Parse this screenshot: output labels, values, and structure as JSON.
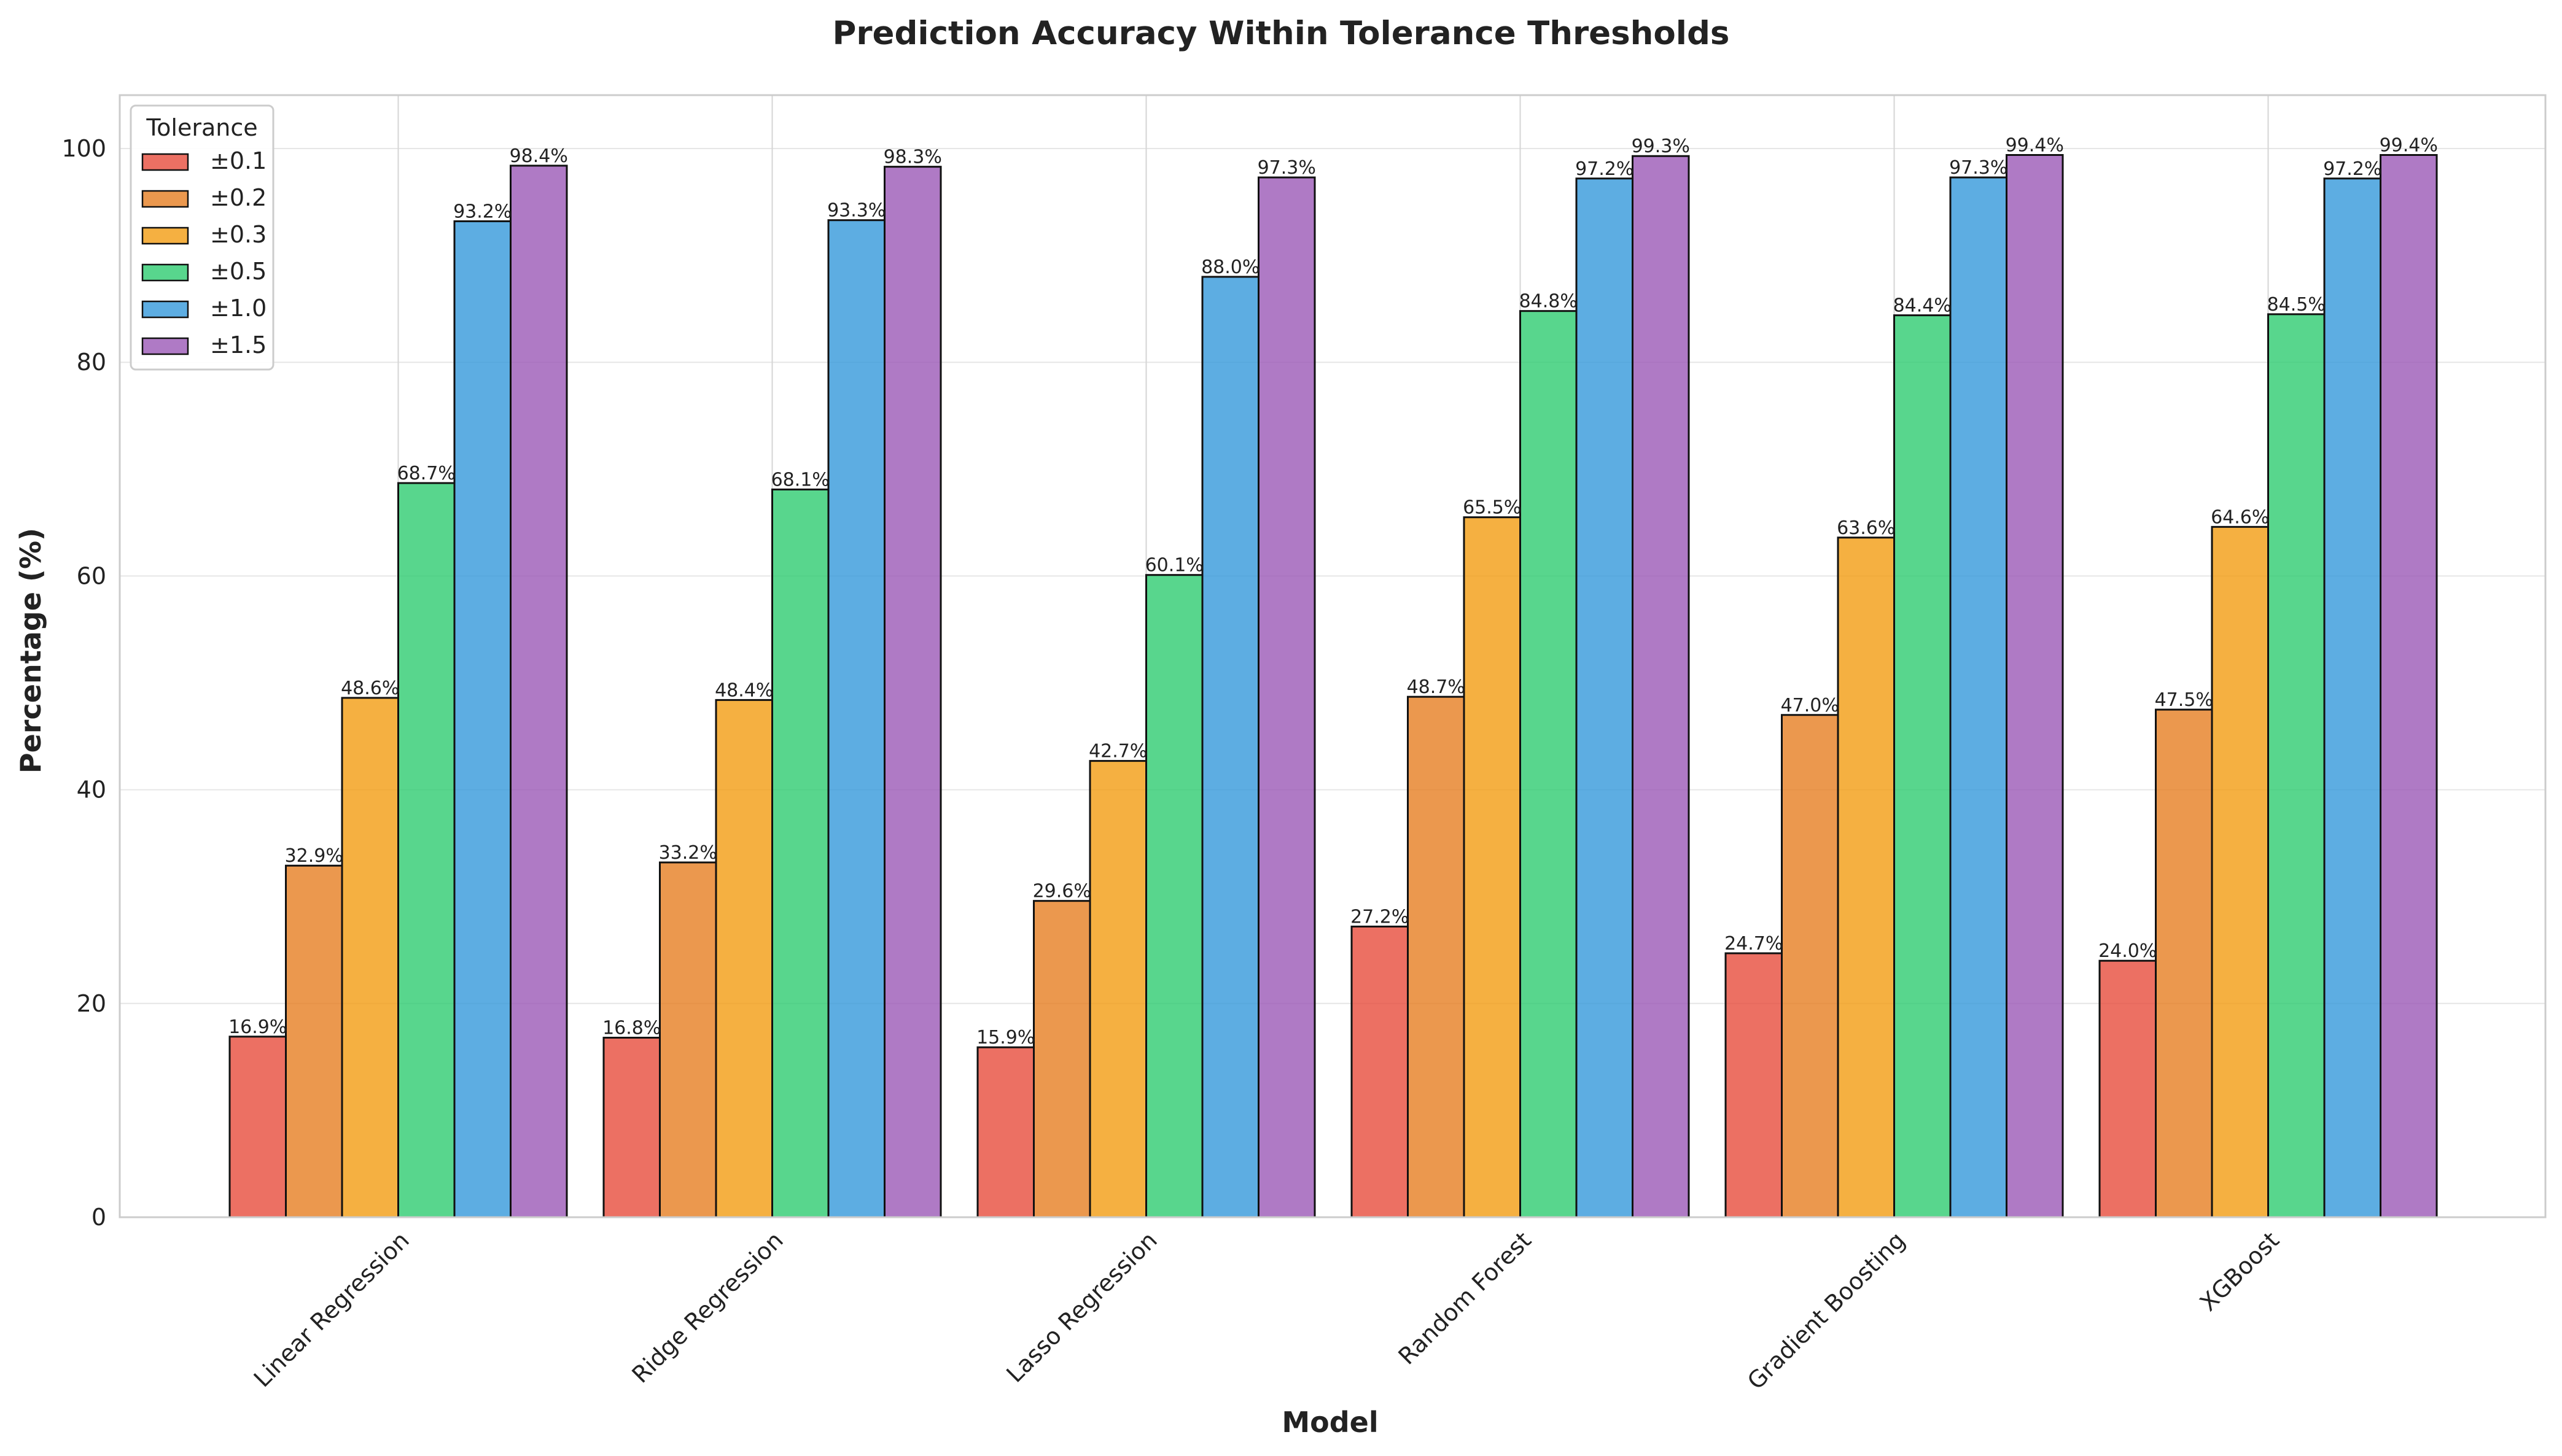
{
  "chart_data": {
    "type": "bar",
    "title": "Prediction Accuracy Within Tolerance Thresholds",
    "xlabel": "Model",
    "ylabel": "Percentage (%)",
    "ylim": [
      0,
      105
    ],
    "yticks": [
      0,
      20,
      40,
      60,
      80,
      100
    ],
    "grid": true,
    "legend": {
      "title": "Tolerance",
      "placement": "top-left"
    },
    "value_suffix": "%",
    "categories": [
      "Linear Regression",
      "Ridge Regression",
      "Lasso Regression",
      "Random Forest",
      "Gradient Boosting",
      "XGBoost"
    ],
    "series": [
      {
        "name": "±0.1",
        "color": "#e74c3c",
        "values": [
          16.9,
          16.8,
          15.9,
          27.2,
          24.7,
          24.0
        ]
      },
      {
        "name": "±0.2",
        "color": "#e67e22",
        "values": [
          32.9,
          33.2,
          29.6,
          48.7,
          47.0,
          47.5
        ]
      },
      {
        "name": "±0.3",
        "color": "#f39c12",
        "values": [
          48.6,
          48.4,
          42.7,
          65.5,
          63.6,
          64.6
        ]
      },
      {
        "name": "±0.5",
        "color": "#2ecc71",
        "values": [
          68.7,
          68.1,
          60.1,
          84.8,
          84.4,
          84.5
        ]
      },
      {
        "name": "±1.0",
        "color": "#3498db",
        "values": [
          93.2,
          93.3,
          88.0,
          97.2,
          97.3,
          97.2
        ]
      },
      {
        "name": "±1.5",
        "color": "#9b59b6",
        "values": [
          98.4,
          98.3,
          97.3,
          99.3,
          99.4,
          99.4
        ]
      }
    ]
  }
}
